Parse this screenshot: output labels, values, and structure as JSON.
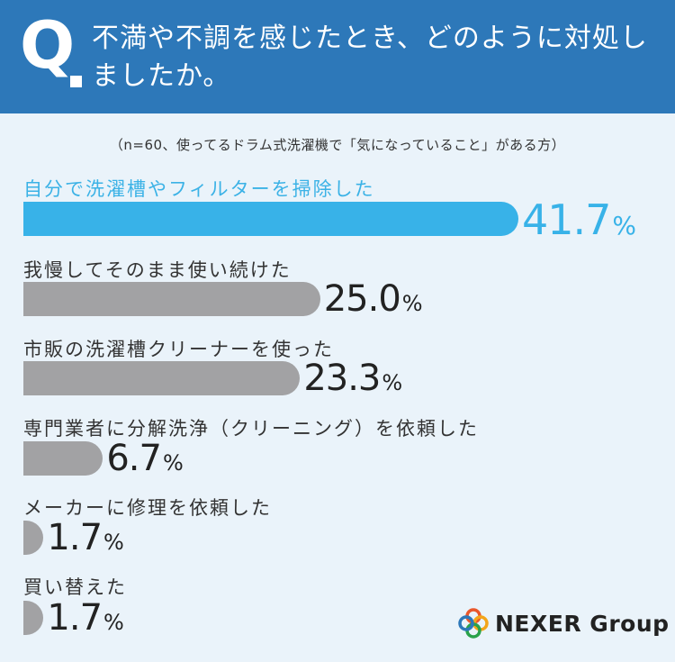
{
  "header": {
    "q_letter": "Q",
    "question": "不満や不調を感じたとき、どのように対処しましたか。"
  },
  "note": "（n=60、使ってるドラム式洗濯機で「気になっていること」がある方）",
  "chart_data": {
    "type": "bar",
    "orientation": "horizontal",
    "title": "不満や不調を感じたとき、どのように対処しましたか。",
    "subtitle": "（n=60、使ってるドラム式洗濯機で「気になっていること」がある方）",
    "categories": [
      "自分で洗濯槽やフィルターを掃除した",
      "我慢してそのまま使い続けた",
      "市販の洗濯槽クリーナーを使った",
      "専門業者に分解洗浄（クリーニング）を依頼した",
      "メーカーに修理を依頼した",
      "買い替えた"
    ],
    "values": [
      41.7,
      25.0,
      23.3,
      6.7,
      1.7,
      1.7
    ],
    "value_labels": [
      "41.7",
      "25.0",
      "23.3",
      "6.7",
      "1.7",
      "1.7"
    ],
    "unit": "%",
    "xlim": [
      0,
      41.7
    ],
    "highlight_index": 0,
    "colors": {
      "highlight": "#38b2e8",
      "default": "#a2a2a4"
    }
  },
  "logo": {
    "text": "NEXER Group",
    "colors": [
      "#e9572b",
      "#f3a51a",
      "#2aa24a",
      "#2d78b9"
    ]
  }
}
